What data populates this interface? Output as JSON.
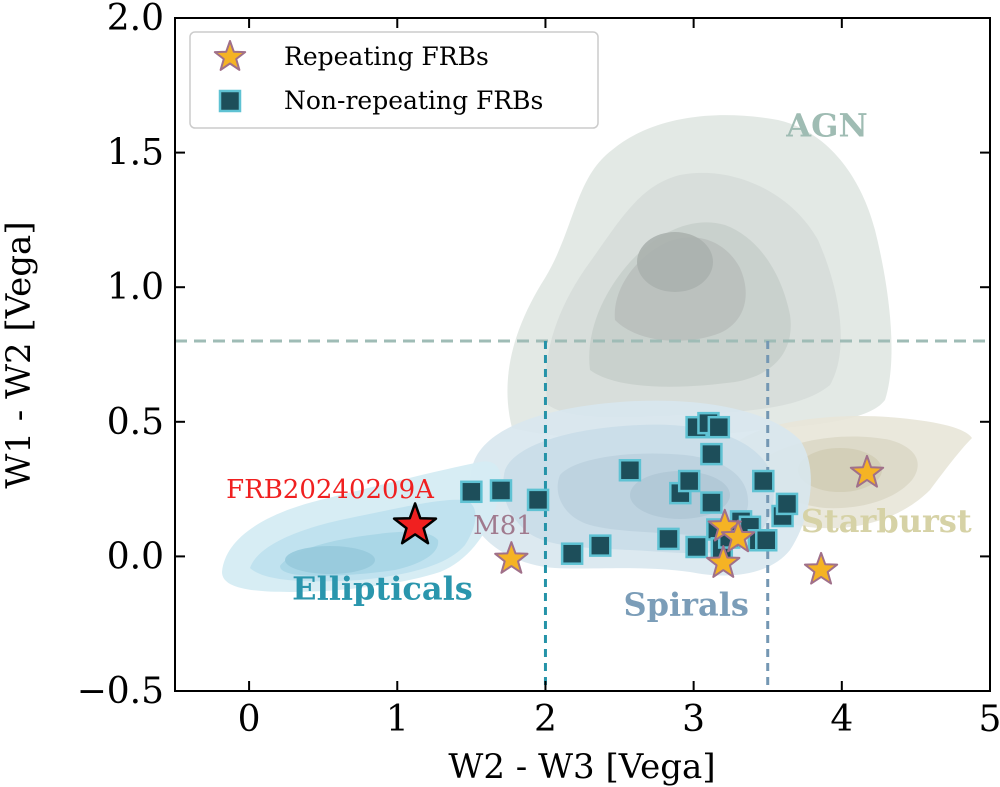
{
  "chart_data": {
    "type": "scatter",
    "title": "",
    "xlabel": "W2 - W3 [Vega]",
    "ylabel": "W1 - W2 [Vega]",
    "xlim": [
      -0.5,
      5
    ],
    "ylim": [
      -0.5,
      2.0
    ],
    "xticks": [
      0,
      1,
      2,
      3,
      4,
      5
    ],
    "xtick_labels": [
      "0",
      "1",
      "2",
      "3",
      "4",
      "5"
    ],
    "yticks": [
      -0.5,
      0.0,
      0.5,
      1.0,
      1.5,
      2.0
    ],
    "ytick_labels": [
      "−0.5",
      "0.0",
      "0.5",
      "1.0",
      "1.5",
      "2.0"
    ],
    "grid": false,
    "legend": {
      "placement": "top-left",
      "entries": [
        {
          "label": "Repeating FRBs",
          "marker": "star",
          "color": "#f5b324",
          "edge": "#a0708a"
        },
        {
          "label": "Non-repeating FRBs",
          "marker": "square",
          "color": "#1d4e5a",
          "edge": "#5fc2d3"
        }
      ]
    },
    "reference_lines": [
      {
        "type": "horizontal",
        "y": 0.8,
        "color": "#9fbcb6",
        "style": "dashed"
      },
      {
        "type": "vertical",
        "x": 2.0,
        "ymax": 0.8,
        "color": "#2593a8",
        "style": "dashed"
      },
      {
        "type": "vertical",
        "x": 3.5,
        "ymax": 0.8,
        "color": "#7497b3",
        "style": "dashed"
      }
    ],
    "regions": [
      {
        "label": "Ellipticals",
        "color": "#2a96ad",
        "label_x": 0.9,
        "label_y": -0.16
      },
      {
        "label": "Spirals",
        "color": "#7b9db8",
        "label_x": 2.95,
        "label_y": -0.22
      },
      {
        "label": "AGN",
        "color": "#9fbcb3",
        "label_x": 3.9,
        "label_y": 1.56
      },
      {
        "label": "Starburst",
        "color": "#d6d2a6",
        "label_x": 4.3,
        "label_y": 0.09
      }
    ],
    "series": [
      {
        "name": "Non-repeating FRBs",
        "marker": "square",
        "color": "#1d4e5a",
        "edge": "#5fc2d3",
        "points": [
          [
            1.5,
            0.24
          ],
          [
            1.7,
            0.245
          ],
          [
            1.95,
            0.21
          ],
          [
            2.18,
            0.01
          ],
          [
            2.37,
            0.04
          ],
          [
            2.57,
            0.32
          ],
          [
            2.83,
            0.065
          ],
          [
            2.91,
            0.235
          ],
          [
            2.97,
            0.28
          ],
          [
            3.02,
            0.035
          ],
          [
            3.02,
            0.48
          ],
          [
            3.1,
            0.495
          ],
          [
            3.12,
            0.2
          ],
          [
            3.12,
            0.38
          ],
          [
            3.16,
            0.1
          ],
          [
            3.17,
            0.48
          ],
          [
            3.19,
            0.03
          ],
          [
            3.24,
            0.07
          ],
          [
            3.32,
            0.13
          ],
          [
            3.38,
            0.11
          ],
          [
            3.44,
            0.06
          ],
          [
            3.47,
            0.28
          ],
          [
            3.49,
            0.06
          ],
          [
            3.6,
            0.15
          ],
          [
            3.63,
            0.195
          ]
        ]
      },
      {
        "name": "Repeating FRBs",
        "marker": "star",
        "color": "#f5b324",
        "edge": "#a0708a",
        "points": [
          [
            1.77,
            -0.01
          ],
          [
            3.2,
            -0.025
          ],
          [
            3.21,
            0.11
          ],
          [
            3.3,
            0.07
          ],
          [
            3.86,
            -0.05
          ],
          [
            4.17,
            0.31
          ]
        ]
      }
    ],
    "annotations": [
      {
        "label": "FRB20240209A",
        "x": 1.12,
        "y": 0.115,
        "marker": "star",
        "color": "#f02020",
        "edge": "#000000",
        "text_color": "#f02020"
      },
      {
        "label": "M81",
        "x": 1.77,
        "y": -0.01,
        "text_color": "#a07a8e"
      }
    ]
  }
}
